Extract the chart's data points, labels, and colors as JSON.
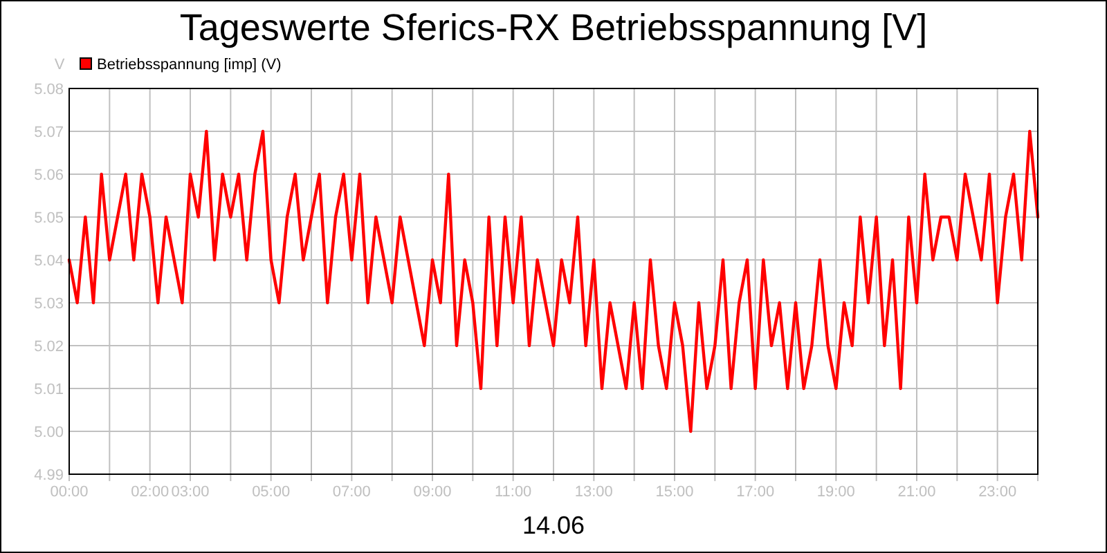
{
  "chart_data": {
    "type": "line",
    "title": "Tageswerte Sferics-RX Betriebsspannung [V]",
    "xlabel": "14.06",
    "ylabel": "V",
    "x": [
      0,
      0.2,
      0.4,
      0.6,
      0.8,
      1,
      1.2,
      1.4,
      1.6,
      1.8,
      2,
      2.2,
      2.4,
      2.6,
      2.8,
      3,
      3.2,
      3.4,
      3.6,
      3.8,
      4,
      4.2,
      4.4,
      4.6,
      4.8,
      5,
      5.2,
      5.4,
      5.6,
      5.8,
      6,
      6.2,
      6.4,
      6.6,
      6.8,
      7,
      7.2,
      7.4,
      7.6,
      7.8,
      8,
      8.2,
      8.4,
      8.6,
      8.8,
      9,
      9.2,
      9.4,
      9.6,
      9.8,
      10,
      10.2,
      10.4,
      10.6,
      10.8,
      11,
      11.2,
      11.4,
      11.6,
      11.8,
      12,
      12.2,
      12.4,
      12.6,
      12.8,
      13,
      13.2,
      13.4,
      13.6,
      13.8,
      14,
      14.2,
      14.4,
      14.6,
      14.8,
      15,
      15.2,
      15.4,
      15.6,
      15.8,
      16,
      16.2,
      16.4,
      16.6,
      16.8,
      17,
      17.2,
      17.4,
      17.6,
      17.8,
      18,
      18.2,
      18.4,
      18.6,
      18.8,
      19,
      19.2,
      19.4,
      19.6,
      19.8,
      20,
      20.2,
      20.4,
      20.6,
      20.8,
      21,
      21.2,
      21.4,
      21.6,
      21.8,
      22,
      22.2,
      22.4,
      22.6,
      22.8,
      23,
      23.2,
      23.4,
      23.6,
      23.8,
      24
    ],
    "series": [
      {
        "name": "Betriebsspannung [imp] (V)",
        "color": "#ff0000",
        "values": [
          5.04,
          5.03,
          5.05,
          5.03,
          5.06,
          5.04,
          5.05,
          5.06,
          5.04,
          5.06,
          5.05,
          5.03,
          5.05,
          5.04,
          5.03,
          5.06,
          5.05,
          5.07,
          5.04,
          5.06,
          5.05,
          5.06,
          5.04,
          5.06,
          5.07,
          5.04,
          5.03,
          5.05,
          5.06,
          5.04,
          5.05,
          5.06,
          5.03,
          5.05,
          5.06,
          5.04,
          5.06,
          5.03,
          5.05,
          5.04,
          5.03,
          5.05,
          5.04,
          5.03,
          5.02,
          5.04,
          5.03,
          5.06,
          5.02,
          5.04,
          5.03,
          5.01,
          5.05,
          5.02,
          5.05,
          5.03,
          5.05,
          5.02,
          5.04,
          5.03,
          5.02,
          5.04,
          5.03,
          5.05,
          5.02,
          5.04,
          5.01,
          5.03,
          5.02,
          5.01,
          5.03,
          5.01,
          5.04,
          5.02,
          5.01,
          5.03,
          5.02,
          5.0,
          5.03,
          5.01,
          5.02,
          5.04,
          5.01,
          5.03,
          5.04,
          5.01,
          5.04,
          5.02,
          5.03,
          5.01,
          5.03,
          5.01,
          5.02,
          5.04,
          5.02,
          5.01,
          5.03,
          5.02,
          5.05,
          5.03,
          5.05,
          5.02,
          5.04,
          5.01,
          5.05,
          5.03,
          5.06,
          5.04,
          5.05,
          5.05,
          5.04,
          5.06,
          5.05,
          5.04,
          5.06,
          5.03,
          5.05,
          5.06,
          5.04,
          5.07,
          5.05
        ]
      }
    ],
    "xlim": [
      0,
      24
    ],
    "xticks": [
      {
        "value": 0,
        "label": "00:00"
      },
      {
        "value": 1,
        "label": null
      },
      {
        "value": 2,
        "label": "02:00"
      },
      {
        "value": 3,
        "label": "03:00"
      },
      {
        "value": 4,
        "label": null
      },
      {
        "value": 5,
        "label": "05:00"
      },
      {
        "value": 6,
        "label": null
      },
      {
        "value": 7,
        "label": "07:00"
      },
      {
        "value": 8,
        "label": null
      },
      {
        "value": 9,
        "label": "09:00"
      },
      {
        "value": 10,
        "label": null
      },
      {
        "value": 11,
        "label": "11:00"
      },
      {
        "value": 12,
        "label": null
      },
      {
        "value": 13,
        "label": "13:00"
      },
      {
        "value": 14,
        "label": null
      },
      {
        "value": 15,
        "label": "15:00"
      },
      {
        "value": 16,
        "label": null
      },
      {
        "value": 17,
        "label": "17:00"
      },
      {
        "value": 18,
        "label": null
      },
      {
        "value": 19,
        "label": "19:00"
      },
      {
        "value": 20,
        "label": null
      },
      {
        "value": 21,
        "label": "21:00"
      },
      {
        "value": 22,
        "label": null
      },
      {
        "value": 23,
        "label": "23:00"
      },
      {
        "value": 24,
        "label": null
      }
    ],
    "ylim": [
      4.99,
      5.08
    ],
    "yticks": [
      {
        "value": 4.99,
        "label": "4.99"
      },
      {
        "value": 5,
        "label": "5.00"
      },
      {
        "value": 5.01,
        "label": "5.01"
      },
      {
        "value": 5.02,
        "label": "5.02"
      },
      {
        "value": 5.03,
        "label": "5.03"
      },
      {
        "value": 5.04,
        "label": "5.04"
      },
      {
        "value": 5.05,
        "label": "5.05"
      },
      {
        "value": 5.06,
        "label": "5.06"
      },
      {
        "value": 5.07,
        "label": "5.07"
      },
      {
        "value": 5.08,
        "label": "5.08"
      }
    ],
    "grid": true,
    "legend": "top left",
    "line_style": "solid",
    "marker": "none"
  }
}
